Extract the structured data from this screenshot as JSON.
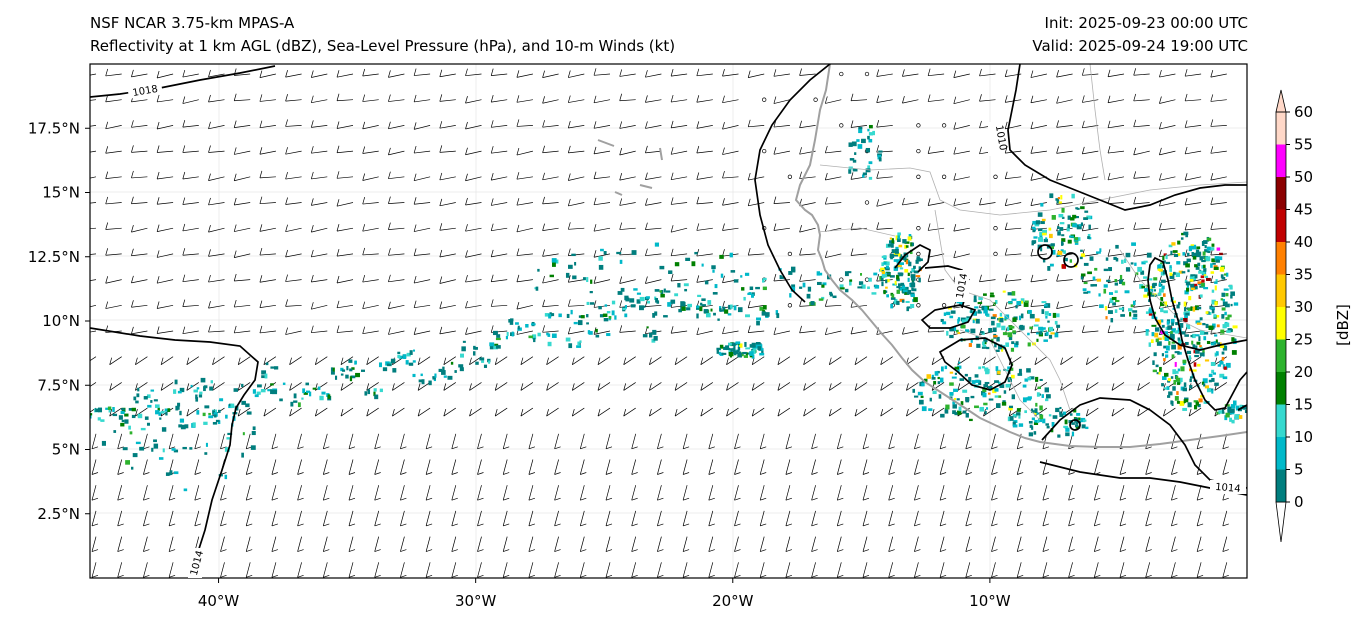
{
  "titles": {
    "left_line1": "NSF NCAR 3.75-km MPAS-A",
    "left_line2": "Reflectivity at 1 km AGL (dBZ), Sea-Level Pressure (hPa), and 10-m Winds (kt)",
    "right_line1": "Init: 2025-09-23 00:00 UTC",
    "right_line2": "Valid: 2025-09-24 19:00 UTC"
  },
  "map": {
    "lon_range": [
      -45,
      0
    ],
    "lat_range": [
      0,
      20
    ],
    "lon_ticks": [
      {
        "value": -40,
        "label": "40°W"
      },
      {
        "value": -30,
        "label": "30°W"
      },
      {
        "value": -20,
        "label": "20°W"
      },
      {
        "value": -10,
        "label": "10°W"
      }
    ],
    "lat_ticks": [
      {
        "value": 2.5,
        "label": "2.5°N"
      },
      {
        "value": 5,
        "label": "5°N"
      },
      {
        "value": 7.5,
        "label": "7.5°N"
      },
      {
        "value": 10,
        "label": "10°N"
      },
      {
        "value": 12.5,
        "label": "12.5°N"
      },
      {
        "value": 15,
        "label": "15°N"
      },
      {
        "value": 17.5,
        "label": "17.5°N"
      }
    ],
    "isobar_labels": [
      "1018",
      "1010",
      "1014",
      "1014",
      "1014"
    ]
  },
  "colorbar": {
    "unit_label": "[dBZ]",
    "ticks": [
      "0",
      "5",
      "10",
      "15",
      "20",
      "25",
      "30",
      "35",
      "40",
      "45",
      "50",
      "55",
      "60"
    ],
    "colors": [
      "#ffffff",
      "#007e7e",
      "#00b9c9",
      "#36d9cf",
      "#008000",
      "#2db22d",
      "#ffff00",
      "#ffc800",
      "#ff8000",
      "#c00000",
      "#8b0000",
      "#ff00ff",
      "#ffd8c8"
    ]
  }
}
